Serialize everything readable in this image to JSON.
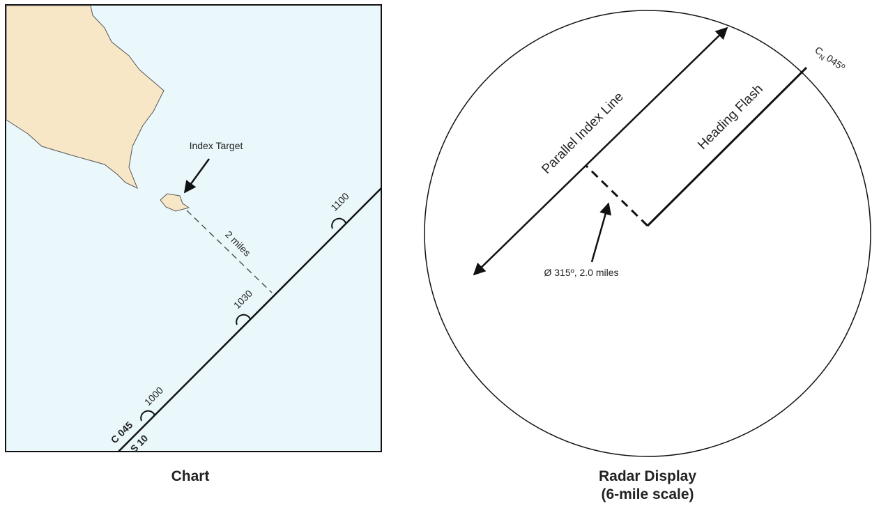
{
  "chart": {
    "caption": "Chart",
    "index_target": "Index Target",
    "distance": "2 miles",
    "times": [
      "1100",
      "1030",
      "1000"
    ],
    "course": "C 045",
    "speed": "S 10"
  },
  "radar": {
    "caption": "Radar Display",
    "scale": "(6-mile scale)",
    "parallel_index_line": "Parallel Index Line",
    "heading_flash": "Heading Flash",
    "heading_label": {
      "c": "C",
      "sub": "N",
      "value": "045º"
    },
    "bearing": "Ø 315º, 2.0 miles"
  }
}
